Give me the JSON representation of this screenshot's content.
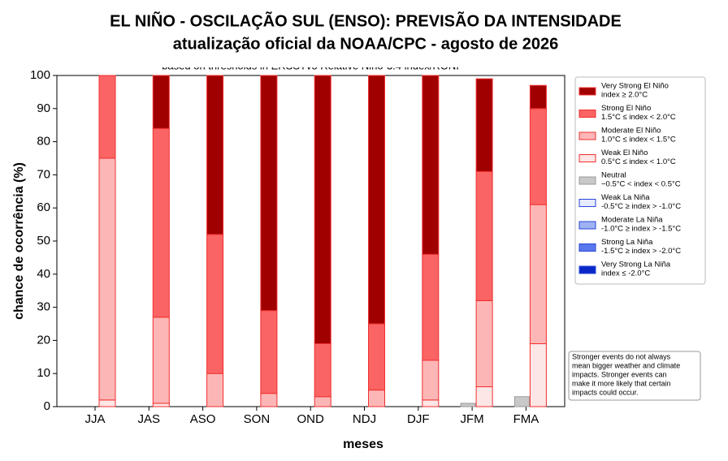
{
  "chart_data": {
    "type": "bar",
    "title": "EL NIÑO - OSCILAÇÃO SUL (ENSO): PREVISÃO DA INTENSIDADE",
    "subtitle": "atualização oficial da NOAA/CPC - agosto de 2026",
    "inner_title": "based on thresholds in ERSSTv5 Relative Niño-3.4 index/RONI",
    "x_label": "meses",
    "y_label": "chance de ocorrência (%)",
    "categories": [
      "JJA",
      "JAS",
      "ASO",
      "SON",
      "OND",
      "NDJ",
      "DJF",
      "JFM",
      "FMA"
    ],
    "ylim": [
      0,
      100
    ],
    "yticks": [
      0,
      10,
      20,
      30,
      40,
      50,
      60,
      70,
      80,
      90,
      100
    ],
    "series": [
      {
        "name": "Very Strong El Niño",
        "description": "index ≥ 2.0°C",
        "color": "#a00000",
        "group": "el-nino",
        "values": [
          0,
          16,
          48,
          71,
          81,
          75,
          54,
          28,
          7
        ]
      },
      {
        "name": "Strong El Niño",
        "description": "1.5°C ≤ index < 2.0°C",
        "color": "#fa6464",
        "group": "el-nino",
        "values": [
          25,
          57,
          42,
          25,
          16,
          20,
          32,
          39,
          29
        ]
      },
      {
        "name": "Moderate El Niño",
        "description": "1.0°C ≤ index < 1.5°C",
        "color": "#fdb6b6",
        "group": "el-nino",
        "values": [
          73,
          26,
          10,
          4,
          3,
          5,
          12,
          26,
          42
        ]
      },
      {
        "name": "Weak El Niño",
        "description": "0.5°C ≤ index < 1.0°C",
        "color": "#fde6e6",
        "group": "el-nino",
        "values": [
          2,
          1,
          0,
          0,
          0,
          0,
          2,
          6,
          19
        ]
      },
      {
        "name": "Neutral",
        "description": "−0.5°C < index < 0.5°C",
        "color": "#c8c8c8",
        "group": "neutral",
        "values": [
          0,
          0,
          0,
          0,
          0,
          0,
          0,
          1,
          3
        ]
      },
      {
        "name": "Weak La Niña",
        "description": "-0.5°C ≥ index > -1.0°C",
        "color": "#e6ecff",
        "group": "la-nina",
        "values": [
          0,
          0,
          0,
          0,
          0,
          0,
          0,
          0,
          0
        ]
      },
      {
        "name": "Moderate La Niña",
        "description": "-1.0°C ≥ index > -1.5°C",
        "color": "#9fb2f2",
        "group": "la-nina",
        "values": [
          0,
          0,
          0,
          0,
          0,
          0,
          0,
          0,
          0
        ]
      },
      {
        "name": "Strong La Niña",
        "description": "-1.5°C ≥ index > -2.0°C",
        "color": "#5a78ee",
        "group": "la-nina",
        "values": [
          0,
          0,
          0,
          0,
          0,
          0,
          0,
          0,
          0
        ]
      },
      {
        "name": "Very Strong La Niña",
        "description": "index ≤ -2.0°C",
        "color": "#0a28c8",
        "group": "la-nina",
        "values": [
          0,
          0,
          0,
          0,
          0,
          0,
          0,
          0,
          0
        ]
      }
    ],
    "note": [
      "Stronger events do not always",
      "mean bigger weather and climate",
      "impacts. Stronger events can",
      "make it more likely that certain",
      "impacts could occur."
    ]
  }
}
